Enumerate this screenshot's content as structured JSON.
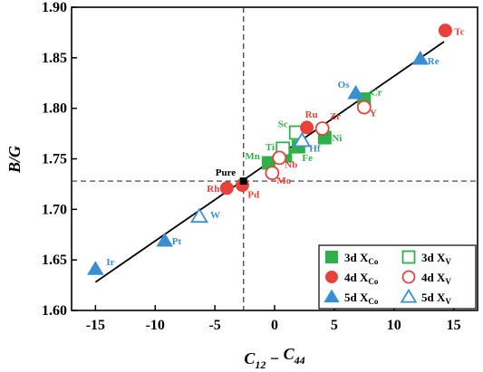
{
  "chart_data": {
    "type": "scatter",
    "xlabel": "C",
    "xlabel_sub1": "12",
    "xlabel_minus": "−",
    "xlabel_c2": "C",
    "xlabel_sub2": "44",
    "ylabel": "B/G",
    "xlim": [
      -17,
      17
    ],
    "ylim": [
      1.6,
      1.9
    ],
    "xticks": [
      -15,
      -10,
      -5,
      0,
      5,
      10,
      15
    ],
    "yticks": [
      1.6,
      1.65,
      1.7,
      1.75,
      1.8,
      1.85,
      1.9
    ],
    "grid": false,
    "reference_lines": {
      "x": -2.6,
      "y": 1.728
    },
    "fit_line": {
      "x": [
        -15,
        14.2
      ],
      "y": [
        1.628,
        1.866
      ]
    },
    "colors": {
      "3d": "#2db24a",
      "4d": "#e8413a",
      "5d": "#3a8fd1",
      "pure": "#000000"
    },
    "pure": {
      "label": "Pure",
      "x": -2.6,
      "y": 1.728
    },
    "series": [
      {
        "name": "3d X_Co",
        "group": "3d",
        "marker": "square",
        "filled": true,
        "points": [
          {
            "label": "Cr",
            "x": 7.5,
            "y": 1.809
          },
          {
            "label": "Ni",
            "x": 4.2,
            "y": 1.771
          },
          {
            "label": "Fe",
            "x": 2.0,
            "y": 1.762
          },
          {
            "label": "Mn",
            "x": -0.5,
            "y": 1.746
          },
          {
            "label": "Ti",
            "x": 0.9,
            "y": 1.753
          }
        ]
      },
      {
        "name": "3d X_V",
        "group": "3d",
        "marker": "square",
        "filled": false,
        "points": [
          {
            "label": "Sc",
            "x": 1.8,
            "y": 1.776
          },
          {
            "label": "",
            "x": 0.7,
            "y": 1.76
          }
        ]
      },
      {
        "name": "4d X_Co",
        "group": "4d",
        "marker": "circle",
        "filled": true,
        "points": [
          {
            "label": "Tc",
            "x": 14.3,
            "y": 1.877
          },
          {
            "label": "Ru",
            "x": 2.7,
            "y": 1.781
          },
          {
            "label": "Rh",
            "x": -4.0,
            "y": 1.721
          },
          {
            "label": "Pd",
            "x": -2.7,
            "y": 1.724
          }
        ]
      },
      {
        "name": "4d X_V",
        "group": "4d",
        "marker": "circle",
        "filled": false,
        "points": [
          {
            "label": "Y",
            "x": 7.5,
            "y": 1.801
          },
          {
            "label": "Zr",
            "x": 4.0,
            "y": 1.78
          },
          {
            "label": "Nb",
            "x": 0.4,
            "y": 1.751
          },
          {
            "label": "Mo",
            "x": -0.2,
            "y": 1.736
          }
        ]
      },
      {
        "name": "5d X_Co",
        "group": "5d",
        "marker": "triangle",
        "filled": true,
        "points": [
          {
            "label": "Re",
            "x": 12.2,
            "y": 1.849
          },
          {
            "label": "Os",
            "x": 6.8,
            "y": 1.815
          },
          {
            "label": "Pt",
            "x": -9.2,
            "y": 1.669
          },
          {
            "label": "Ir",
            "x": -15.0,
            "y": 1.641
          }
        ]
      },
      {
        "name": "5d X_V",
        "group": "5d",
        "marker": "triangle",
        "filled": false,
        "points": [
          {
            "label": "W",
            "x": -6.3,
            "y": 1.693
          },
          {
            "label": "Hf",
            "x": 2.3,
            "y": 1.768
          }
        ]
      }
    ],
    "legend": {
      "placement": "bottom-right",
      "entries": [
        {
          "group": "3d",
          "marker": "square",
          "filled": true,
          "prefix": "3d",
          "sym": "X",
          "sub": "Co"
        },
        {
          "group": "3d",
          "marker": "square",
          "filled": false,
          "prefix": "3d",
          "sym": "X",
          "sub": "V"
        },
        {
          "group": "4d",
          "marker": "circle",
          "filled": true,
          "prefix": "4d",
          "sym": "X",
          "sub": "Co"
        },
        {
          "group": "4d",
          "marker": "circle",
          "filled": false,
          "prefix": "4d",
          "sym": "X",
          "sub": "V"
        },
        {
          "group": "5d",
          "marker": "triangle",
          "filled": true,
          "prefix": "5d",
          "sym": "X",
          "sub": "Co"
        },
        {
          "group": "5d",
          "marker": "triangle",
          "filled": false,
          "prefix": "5d",
          "sym": "X",
          "sub": "V"
        }
      ]
    }
  }
}
